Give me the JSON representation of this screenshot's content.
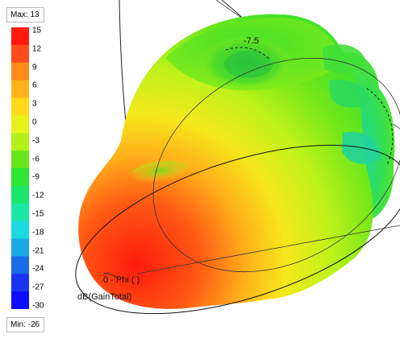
{
  "legend": {
    "max_label": "Max: 13",
    "min_label": "Min: -26",
    "ticks": [
      "15",
      "12",
      "9",
      "6",
      "3",
      "0",
      "-3",
      "-6",
      "-9",
      "-12",
      "-15",
      "-18",
      "-21",
      "-24",
      "-27",
      "-30"
    ],
    "colors": [
      "#ff1a0d",
      "#ff4d1a",
      "#ff8c1a",
      "#ffb31a",
      "#ffd91a",
      "#e6f21a",
      "#b3f01a",
      "#66e61a",
      "#2ee633",
      "#1ae66b",
      "#1ae6a6",
      "#1ad9e0",
      "#1aa6e6",
      "#1a6be6",
      "#1a33f0",
      "#0d0dff"
    ]
  },
  "scene": {
    "angle_label": "-7.5",
    "phi_label": "0 - Phi ( )",
    "quantity_label": "dB(GainTotal)"
  }
}
